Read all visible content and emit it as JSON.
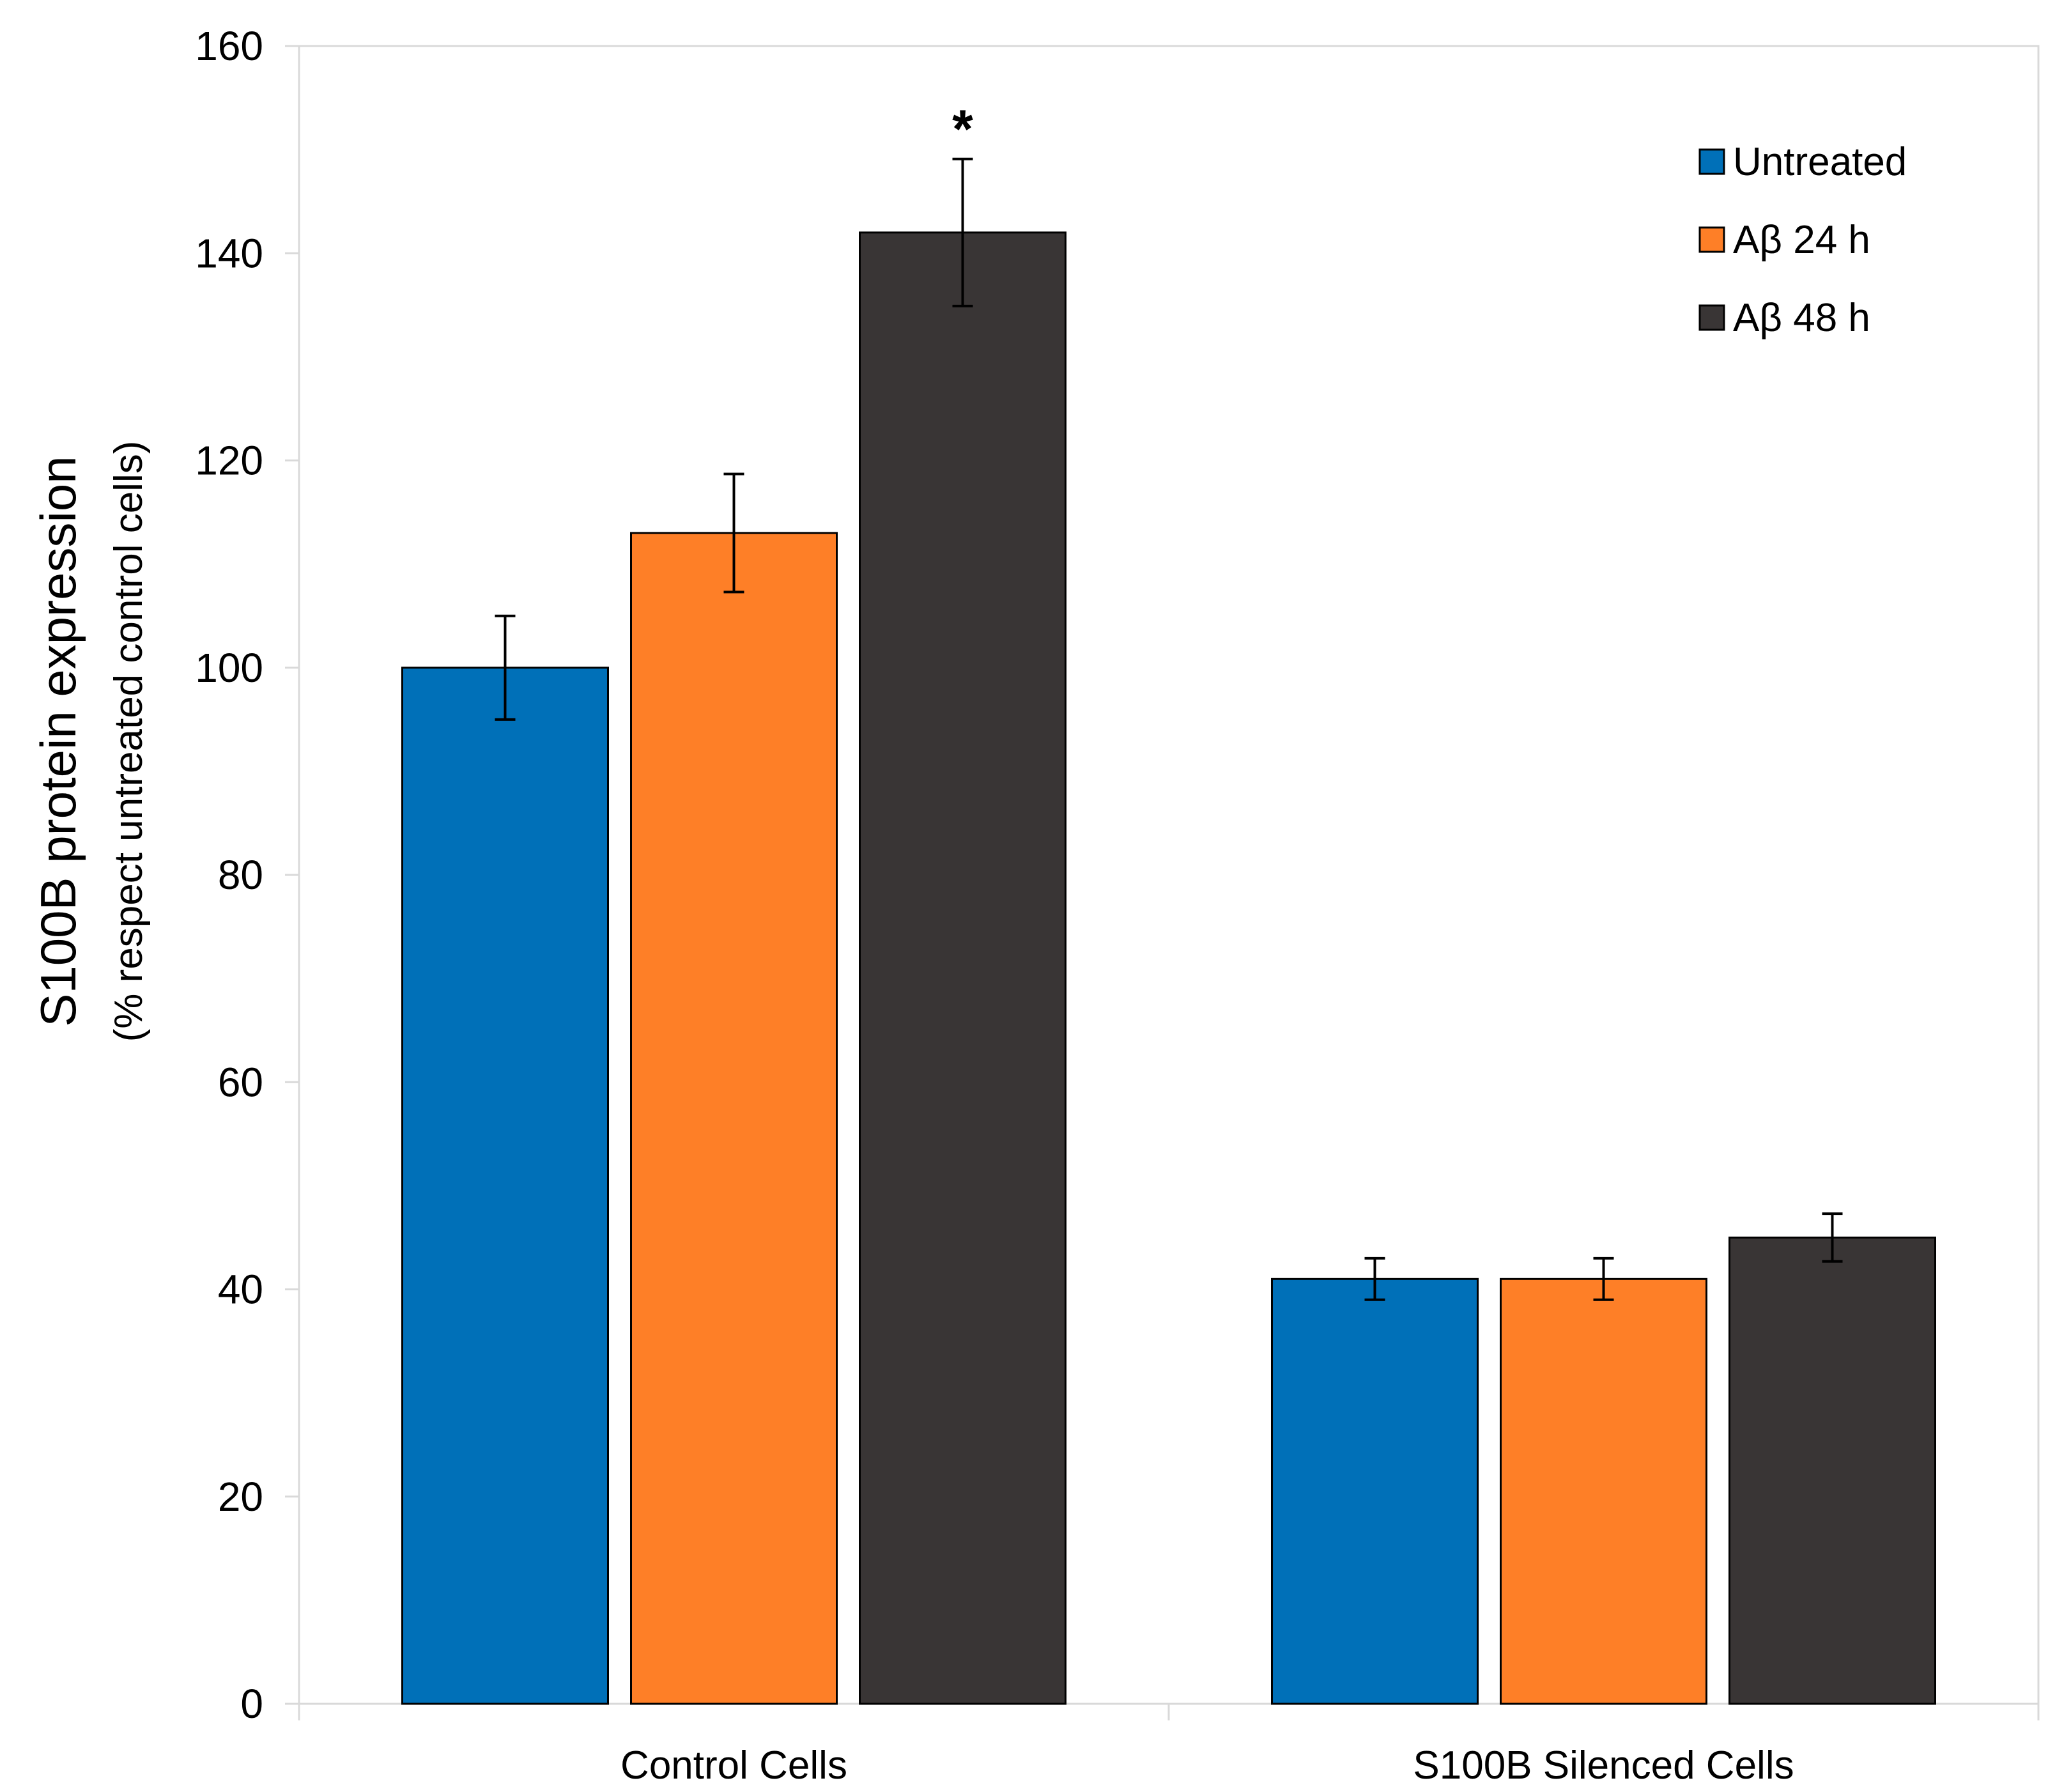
{
  "chart_data": {
    "type": "bar",
    "title": "",
    "ylabel": "S100B protein expression",
    "ylabel_sub": "(% respect untreated control cells)",
    "xlabel": "",
    "ylim": [
      0,
      160
    ],
    "yticks": [
      0,
      20,
      40,
      60,
      80,
      100,
      120,
      140,
      160
    ],
    "categories": [
      "Control Cells",
      "S100B Silenced Cells"
    ],
    "series": [
      {
        "name": "Untreated",
        "color": "#0070b8",
        "values": [
          100,
          41
        ],
        "errors": [
          5,
          2
        ]
      },
      {
        "name": "Aβ 24 h",
        "color": "#fe7f27",
        "values": [
          113,
          41
        ],
        "errors": [
          5.7,
          2
        ]
      },
      {
        "name": "Aβ 48 h",
        "color": "#393535",
        "values": [
          142,
          45
        ],
        "errors": [
          7.1,
          2.3
        ]
      }
    ],
    "annotations": [
      {
        "text": "*",
        "category": 0,
        "series": 2
      }
    ],
    "legend_position": "top-right",
    "grid": false
  }
}
